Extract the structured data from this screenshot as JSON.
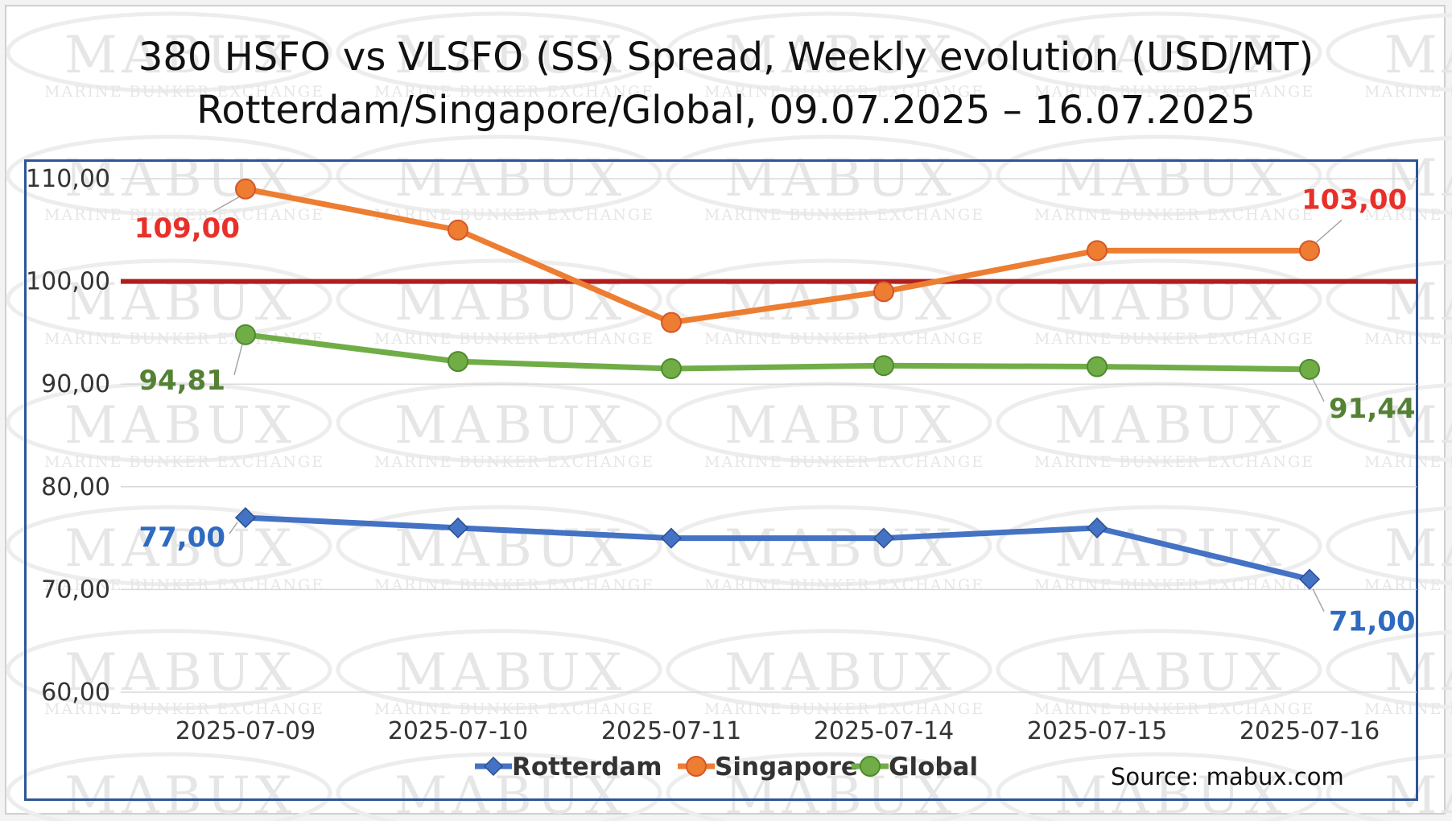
{
  "title_line1": "380 HSFO vs VLSFO (SS) Spread, Weekly evolution (USD/MT)",
  "title_line2": "Rotterdam/Singapore/Global, 09.07.2025 – 16.07.2025",
  "watermark": {
    "brand": "MABUX",
    "subtitle": "MARINE BUNKER EXCHANGE"
  },
  "source": "Source: mabux.com",
  "chart_data": {
    "type": "line",
    "title": "380 HSFO vs VLSFO (SS) Spread, Weekly evolution (USD/MT)",
    "subtitle": "Rotterdam/Singapore/Global, 09.07.2025 – 16.07.2025",
    "categories": [
      "2025-07-09",
      "2025-07-10",
      "2025-07-11",
      "2025-07-14",
      "2025-07-15",
      "2025-07-16"
    ],
    "ylim": [
      60,
      110
    ],
    "yticks": [
      60,
      70,
      80,
      90,
      100,
      110
    ],
    "ytick_labels": [
      "60,00",
      "70,00",
      "80,00",
      "90,00",
      "100,00",
      "110,00"
    ],
    "reference_line": {
      "value": 100,
      "color": "#b01e1e"
    },
    "legend_position": "bottom",
    "series": [
      {
        "name": "Rotterdam",
        "color": "#4472c4",
        "marker": "diamond",
        "label_color": "#2e6bc0",
        "values": [
          77,
          76,
          75,
          75,
          76,
          71
        ],
        "labels": [
          {
            "index": 0,
            "text": "77,00"
          },
          {
            "index": 5,
            "text": "71,00"
          }
        ]
      },
      {
        "name": "Singapore",
        "color": "#ed7d31",
        "marker": "circle",
        "label_color": "#e8302a",
        "values": [
          109,
          105,
          96,
          99,
          103,
          103
        ],
        "labels": [
          {
            "index": 0,
            "text": "109,00"
          },
          {
            "index": 5,
            "text": "103,00"
          }
        ]
      },
      {
        "name": "Global",
        "color": "#70ad47",
        "marker": "circle",
        "label_color": "#548235",
        "values": [
          94.81,
          92.2,
          91.5,
          91.8,
          91.7,
          91.44
        ],
        "labels": [
          {
            "index": 0,
            "text": "94,81"
          },
          {
            "index": 5,
            "text": "91,44"
          }
        ]
      }
    ]
  }
}
